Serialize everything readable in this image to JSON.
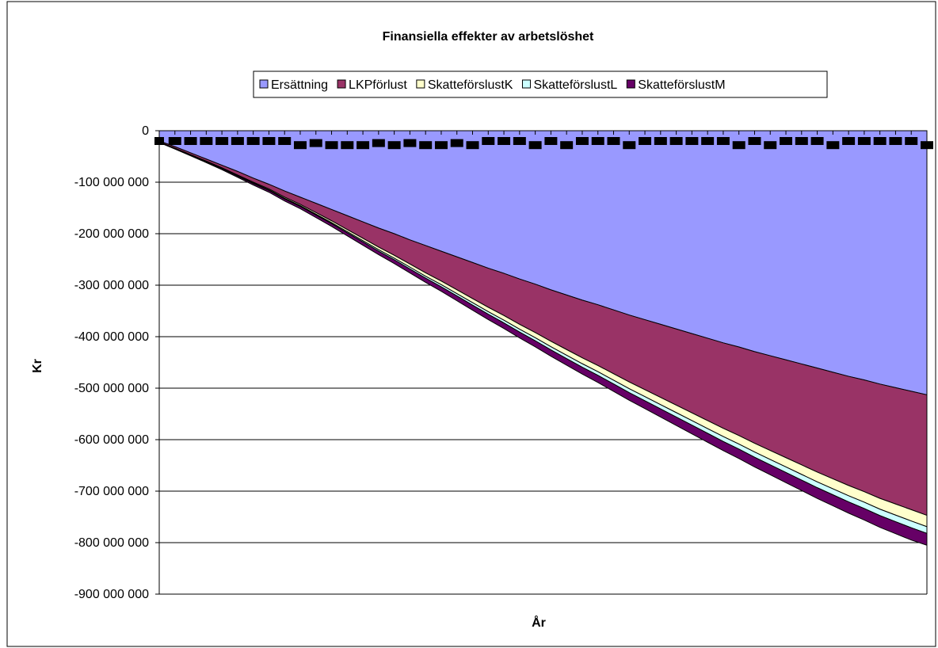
{
  "chart_data": {
    "type": "area",
    "title": "Finansiella effekter av arbetslöshet",
    "xlabel": "År",
    "ylabel": "Kr",
    "ylim": [
      -900000000,
      0
    ],
    "y_ticks": [
      0,
      -100000000,
      -200000000,
      -300000000,
      -400000000,
      -500000000,
      -600000000,
      -700000000,
      -800000000,
      -900000000
    ],
    "y_tick_labels": [
      "0",
      "-100 000 000",
      "-200 000 000",
      "-300 000 000",
      "-400 000 000",
      "-500 000 000",
      "-600 000 000",
      "-700 000 000",
      "-800 000 000",
      "-900 000 000"
    ],
    "grid": true,
    "stacked": true,
    "legend_position": "top",
    "series": [
      {
        "name": "Ersättning",
        "color": "#9999FF",
        "values": [
          -20000000,
          -31000000,
          -43000000,
          -55000000,
          -67000000,
          -79000000,
          -92000000,
          -104000000,
          -117000000,
          -129000000,
          -141000000,
          -153000000,
          -165000000,
          -177000000,
          -189000000,
          -200000000,
          -212000000,
          -223000000,
          -234000000,
          -245000000,
          -256000000,
          -267000000,
          -277000000,
          -288000000,
          -298000000,
          -309000000,
          -319000000,
          -329000000,
          -338000000,
          -348000000,
          -358000000,
          -367000000,
          -376000000,
          -385000000,
          -394000000,
          -403000000,
          -412000000,
          -420000000,
          -429000000,
          -437000000,
          -445000000,
          -453000000,
          -461000000,
          -469000000,
          -477000000,
          -484000000,
          -492000000,
          -499000000,
          -506000000,
          -513000000
        ]
      },
      {
        "name": "LKPförlust",
        "color": "#993366",
        "values": [
          -2000000,
          -3000000,
          -3500000,
          -4000000,
          -5000000,
          -7000000,
          -8000000,
          -9000000,
          -12000000,
          -14000000,
          -18000000,
          -22000000,
          -27000000,
          -32000000,
          -37000000,
          -42000000,
          -47000000,
          -53000000,
          -58000000,
          -64000000,
          -70000000,
          -76000000,
          -82000000,
          -88000000,
          -94000000,
          -100000000,
          -106000000,
          -112000000,
          -118000000,
          -124000000,
          -130000000,
          -136000000,
          -142000000,
          -148000000,
          -154000000,
          -160000000,
          -166000000,
          -172000000,
          -178000000,
          -184000000,
          -190000000,
          -196000000,
          -202000000,
          -207000000,
          -212000000,
          -217000000,
          -222000000,
          -226000000,
          -230000000,
          -234000000
        ]
      },
      {
        "name": "SkatteförslustK",
        "color": "#FFFFCC",
        "values": [
          -300000,
          -500000,
          -700000,
          -900000,
          -1100000,
          -1300000,
          -1600000,
          -1900000,
          -2200000,
          -2500000,
          -3000000,
          -3500000,
          -4000000,
          -4500000,
          -5000000,
          -5500000,
          -6000000,
          -6500000,
          -7000000,
          -7500000,
          -8000000,
          -8500000,
          -9000000,
          -9500000,
          -10000000,
          -10500000,
          -11000000,
          -11500000,
          -12000000,
          -12500000,
          -13000000,
          -13500000,
          -14000000,
          -14500000,
          -15000000,
          -15500000,
          -16000000,
          -16500000,
          -17000000,
          -17500000,
          -18000000,
          -18500000,
          -19000000,
          -19500000,
          -20000000,
          -20500000,
          -21000000,
          -21500000,
          -22000000,
          -22000000
        ]
      },
      {
        "name": "SkatteförslustL",
        "color": "#CCFFFF",
        "values": [
          -200000,
          -300000,
          -400000,
          -500000,
          -700000,
          -800000,
          -1000000,
          -1200000,
          -1400000,
          -1600000,
          -1800000,
          -2000000,
          -2300000,
          -2600000,
          -2900000,
          -3200000,
          -3500000,
          -3800000,
          -4100000,
          -4400000,
          -4700000,
          -5000000,
          -5300000,
          -5600000,
          -5900000,
          -6200000,
          -6500000,
          -6800000,
          -7100000,
          -7400000,
          -7700000,
          -8000000,
          -8300000,
          -8600000,
          -8900000,
          -9200000,
          -9500000,
          -9800000,
          -10100000,
          -10400000,
          -10700000,
          -11000000,
          -11300000,
          -11600000,
          -11900000,
          -12200000,
          -12500000,
          -12800000,
          -13100000,
          -13000000
        ]
      },
      {
        "name": "SkatteförslustM",
        "color": "#660066",
        "values": [
          -500000,
          -800000,
          -1100000,
          -1500000,
          -1900000,
          -2300000,
          -2800000,
          -3300000,
          -3800000,
          -4300000,
          -4800000,
          -5300000,
          -5800000,
          -6300000,
          -6800000,
          -7300000,
          -7800000,
          -8300000,
          -8800000,
          -9300000,
          -9800000,
          -10300000,
          -10800000,
          -11300000,
          -11800000,
          -12300000,
          -12800000,
          -13300000,
          -13800000,
          -14300000,
          -14800000,
          -15300000,
          -15800000,
          -16300000,
          -16800000,
          -17300000,
          -17800000,
          -18300000,
          -18800000,
          -19300000,
          -19800000,
          -20300000,
          -20800000,
          -21300000,
          -21800000,
          -22300000,
          -22800000,
          -23300000,
          -23800000,
          -23000000
        ]
      }
    ],
    "marker_series": {
      "color": "#000000",
      "values": [
        -20000000,
        -20000000,
        -20000000,
        -20000000,
        -20000000,
        -20000000,
        -20000000,
        -20000000,
        -20000000,
        -28000000,
        -24000000,
        -28000000,
        -28000000,
        -28000000,
        -24000000,
        -28000000,
        -24000000,
        -28000000,
        -28000000,
        -24000000,
        -28000000,
        -20000000,
        -20000000,
        -20000000,
        -28000000,
        -20000000,
        -28000000,
        -20000000,
        -20000000,
        -20000000,
        -28000000,
        -20000000,
        -20000000,
        -20000000,
        -20000000,
        -20000000,
        -20000000,
        -28000000,
        -20000000,
        -28000000,
        -20000000,
        -20000000,
        -20000000,
        -28000000,
        -20000000,
        -20000000,
        -20000000,
        -20000000,
        -20000000,
        -28000000
      ]
    }
  }
}
